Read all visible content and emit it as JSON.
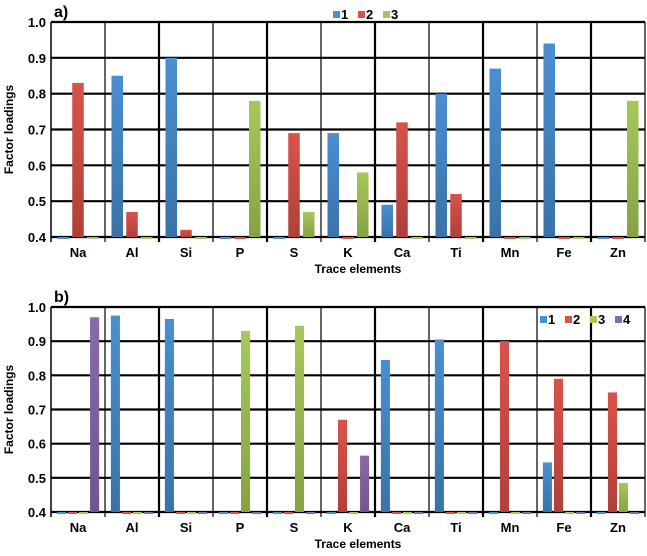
{
  "colors": {
    "series": [
      "#4a8fd0",
      "#d9534a",
      "#a6c85a",
      "#8a6aaa"
    ],
    "series_dark": [
      "#3a72a8",
      "#b0403a",
      "#86a244",
      "#6f5590"
    ],
    "grid": "#000000"
  },
  "chart_data": [
    {
      "type": "bar",
      "panel_label": "a)",
      "title": "",
      "xlabel": "Trace elements",
      "ylabel": "Factor loadings",
      "ylim": [
        0.4,
        1.0
      ],
      "yticks": [
        "0.4",
        "0.5",
        "0.6",
        "0.7",
        "0.8",
        "0.9",
        "1.0"
      ],
      "grid": true,
      "legend_position": "top-center",
      "categories": [
        "Na",
        "Al",
        "Si",
        "P",
        "S",
        "K",
        "Ca",
        "Ti",
        "Mn",
        "Fe",
        "Zn"
      ],
      "series": [
        {
          "name": "1",
          "values": [
            0.4,
            0.85,
            0.9,
            0.4,
            0.4,
            0.69,
            0.49,
            0.8,
            0.87,
            0.94,
            0.4
          ]
        },
        {
          "name": "2",
          "values": [
            0.83,
            0.47,
            0.42,
            0.4,
            0.69,
            0.4,
            0.72,
            0.52,
            0.4,
            0.4,
            0.4
          ]
        },
        {
          "name": "3",
          "values": [
            0.4,
            0.4,
            0.4,
            0.78,
            0.47,
            0.58,
            0.4,
            0.4,
            0.4,
            0.4,
            0.78
          ]
        }
      ]
    },
    {
      "type": "bar",
      "panel_label": "b)",
      "title": "",
      "xlabel": "Trace elements",
      "ylabel": "Factor loadings",
      "ylim": [
        0.4,
        1.0
      ],
      "yticks": [
        "0.4",
        "0.5",
        "0.6",
        "0.7",
        "0.8",
        "0.9",
        "1.0"
      ],
      "grid": true,
      "legend_position": "top-right",
      "categories": [
        "Na",
        "Al",
        "Si",
        "P",
        "S",
        "K",
        "Ca",
        "Ti",
        "Mn",
        "Fe",
        "Zn"
      ],
      "series": [
        {
          "name": "1",
          "values": [
            0.4,
            0.975,
            0.965,
            0.4,
            0.4,
            0.4,
            0.845,
            0.905,
            0.4,
            0.545,
            0.4
          ]
        },
        {
          "name": "2",
          "values": [
            0.4,
            0.4,
            0.4,
            0.4,
            0.4,
            0.67,
            0.4,
            0.4,
            0.9,
            0.79,
            0.75
          ]
        },
        {
          "name": "3",
          "values": [
            0.4,
            0.4,
            0.4,
            0.93,
            0.945,
            0.4,
            0.4,
            0.4,
            0.4,
            0.4,
            0.485
          ]
        },
        {
          "name": "4",
          "values": [
            0.97,
            0.4,
            0.4,
            0.4,
            0.4,
            0.565,
            0.4,
            0.4,
            0.4,
            0.4,
            0.4
          ]
        }
      ]
    }
  ]
}
